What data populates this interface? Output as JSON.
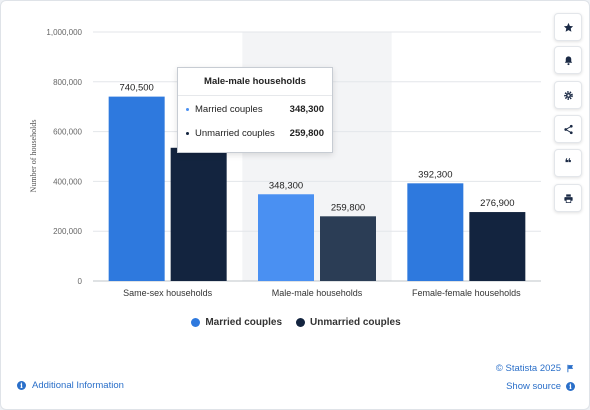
{
  "chart_data": {
    "type": "bar",
    "ylabel": "Number of households",
    "ylim": [
      0,
      1000000
    ],
    "yticks": [
      0,
      200000,
      400000,
      600000,
      800000,
      1000000
    ],
    "ytick_labels": [
      "0",
      "200,000",
      "400,000",
      "600,000",
      "800,000",
      "1,000,000"
    ],
    "categories": [
      "Same-sex households",
      "Male-male households",
      "Female-female households"
    ],
    "series": [
      {
        "name": "Married couples",
        "values": [
          740500,
          348300,
          392300
        ],
        "labels": [
          "740,500",
          "348,300",
          "392,300"
        ]
      },
      {
        "name": "Unmarried couples",
        "values": [
          535000,
          259800,
          276900
        ],
        "labels": [
          "",
          "259,800",
          "276,900"
        ]
      }
    ],
    "highlighted_category": 1,
    "legend_position": "bottom-center",
    "grid": true
  },
  "colors": {
    "married": "#2e79de",
    "unmarried": "#13243f",
    "married_highlight": "#4a90f2",
    "unmarried_highlight": "#2b3d55",
    "highlight_band": "#f3f4f6"
  },
  "tooltip": {
    "title": "Male-male households",
    "rows": [
      {
        "name": "Married couples",
        "value": "348,300"
      },
      {
        "name": "Unmarried couples",
        "value": "259,800"
      }
    ]
  },
  "legend": {
    "married": "Married couples",
    "unmarried": "Unmarried couples"
  },
  "sidebar": {
    "buttons": [
      "star-icon",
      "bell-icon",
      "gear-icon",
      "share-icon",
      "quote-icon",
      "print-icon"
    ],
    "quote_glyph": "❝"
  },
  "footer": {
    "credit": "© Statista 2025",
    "show_source": "Show source",
    "additional_info": "Additional Information",
    "info_glyph": "i"
  }
}
